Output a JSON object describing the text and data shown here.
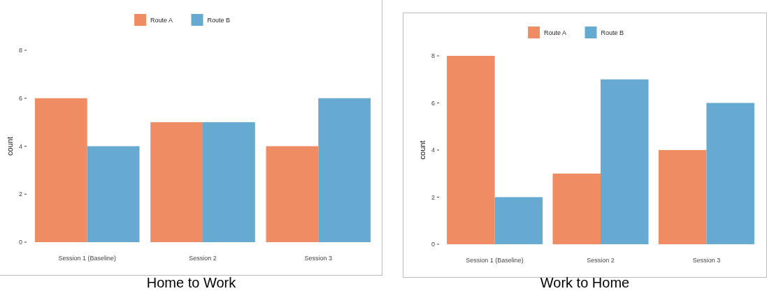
{
  "chart_data": [
    {
      "type": "bar",
      "title": "Home to Work",
      "ylabel": "count",
      "categories": [
        "Session 1 (Baseline)",
        "Session 2",
        "Session 3"
      ],
      "series": [
        {
          "name": "Route A",
          "color": "#f08c63",
          "values": [
            6,
            5,
            4
          ]
        },
        {
          "name": "Route B",
          "color": "#66aad1",
          "values": [
            4,
            5,
            6
          ]
        }
      ],
      "ylim": [
        0,
        8
      ],
      "yticks": [
        0,
        2,
        4,
        6,
        8
      ],
      "grid": false,
      "legend": "top"
    },
    {
      "type": "bar",
      "title": "Work to Home",
      "ylabel": "count",
      "categories": [
        "Session 1 (Baseline)",
        "Session 2",
        "Session 3"
      ],
      "series": [
        {
          "name": "Route A",
          "color": "#f08c63",
          "values": [
            8,
            3,
            4
          ]
        },
        {
          "name": "Route B",
          "color": "#66aad1",
          "values": [
            2,
            7,
            6
          ]
        }
      ],
      "ylim": [
        0,
        8
      ],
      "yticks": [
        0,
        2,
        4,
        6,
        8
      ],
      "grid": false,
      "legend": "top"
    }
  ]
}
